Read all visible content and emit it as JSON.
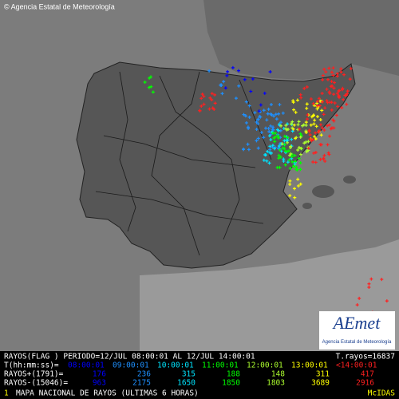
{
  "header": {
    "credit": "© Agencia Estatal de Meteorología"
  },
  "logo": {
    "name": "AEmet",
    "subtitle": "Agencia Estatal de Meteorología"
  },
  "info": {
    "period": "RAYOS(FLAG ) PERIODO=12/JUL 08:00:01 AL 12/JUL 14:00:01",
    "total": "T.rayos=16837",
    "time_label": "T(hh:mm:ss)=",
    "times": [
      "08:00:01",
      "09:00:01",
      "10:00:01",
      "11:00:01",
      "12:00:01",
      "13:00:01",
      "<14:00:01"
    ],
    "colors": [
      "#0000ff",
      "#1e90ff",
      "#00e5ff",
      "#00ff00",
      "#adff2f",
      "#ffff00",
      "#ff2020"
    ],
    "positive_label": "RAYOS+(1791)=",
    "positive": [
      176,
      236,
      315,
      188,
      148,
      311,
      417
    ],
    "negative_label": "RAYOS-(15046)=",
    "negative": [
      963,
      2175,
      1650,
      1850,
      1803,
      3689,
      2916
    ]
  },
  "footer": {
    "index": "1",
    "title": "MAPA NACIONAL DE RAYOS (ULTIMAS 6 HORAS)",
    "system": "McIDAS"
  }
}
